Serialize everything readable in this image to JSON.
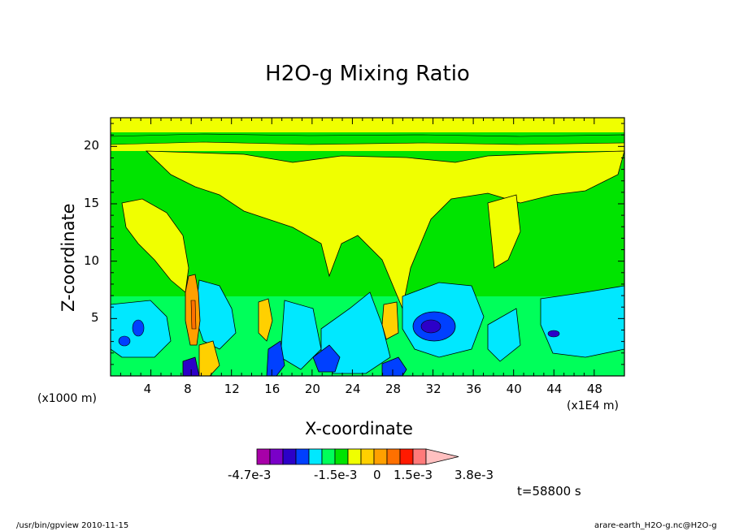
{
  "chart_data": {
    "type": "heatmap",
    "title": "H2O-g Mixing Ratio",
    "xlabel": "X-coordinate",
    "ylabel": "Z-coordinate",
    "x_unit_left": "(x1000 m)",
    "x_unit_right": "(x1E4 m)",
    "x_ticks": [
      "4",
      "8",
      "12",
      "16",
      "20",
      "24",
      "28",
      "32",
      "36",
      "40",
      "44",
      "48"
    ],
    "y_ticks": [
      "5",
      "10",
      "15",
      "20"
    ],
    "xlim": [
      0,
      51
    ],
    "ylim": [
      0,
      22.5
    ],
    "colorbar": {
      "colors": [
        "#a800a8",
        "#7a00c8",
        "#2c00c8",
        "#0040ff",
        "#00e8ff",
        "#00ff5a",
        "#00e400",
        "#f0ff00",
        "#ffd000",
        "#ffa000",
        "#ff7000",
        "#ff1a00",
        "#ff7a7a",
        "#ffc0c0"
      ],
      "labels": [
        "-4.7e-3",
        "-1.5e-3",
        "0",
        "1.5e-3",
        "3.8e-3"
      ]
    },
    "time_label": "t=58800 s"
  },
  "footer": {
    "left": "/usr/bin/gpview  2010-11-15",
    "right": "arare-earth_H2O-g.nc@H2O-g"
  }
}
